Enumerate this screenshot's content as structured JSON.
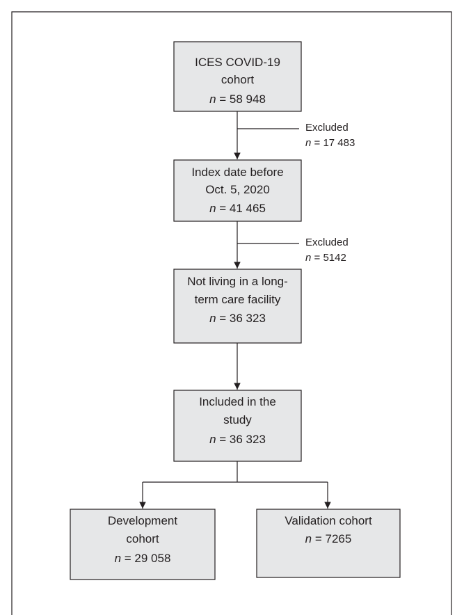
{
  "nodes": [
    {
      "lines": [
        "ICES COVID-19",
        "cohort"
      ],
      "n": {
        "symbol": "n",
        "value": "= 58 948"
      }
    },
    {
      "lines": [
        "Index date before",
        "Oct. 5, 2020"
      ],
      "n": {
        "symbol": "n",
        "value": "= 41 465"
      }
    },
    {
      "lines": [
        "Not living in a long-",
        "term care facility"
      ],
      "n": {
        "symbol": "n",
        "value": "= 36 323"
      }
    },
    {
      "lines": [
        "Included in the",
        "study"
      ],
      "n": {
        "symbol": "n",
        "value": "= 36 323"
      }
    },
    {
      "lines": [
        "Development",
        "cohort"
      ],
      "n": {
        "symbol": "n",
        "value": "= 29 058"
      }
    },
    {
      "lines": [
        "Validation cohort"
      ],
      "n": {
        "symbol": "n",
        "value": "= 7265"
      }
    }
  ],
  "exclusions": [
    {
      "label": "Excluded",
      "n": {
        "symbol": "n",
        "value": "= 17 483"
      }
    },
    {
      "label": "Excluded",
      "n": {
        "symbol": "n",
        "value": "= 5142"
      }
    }
  ]
}
